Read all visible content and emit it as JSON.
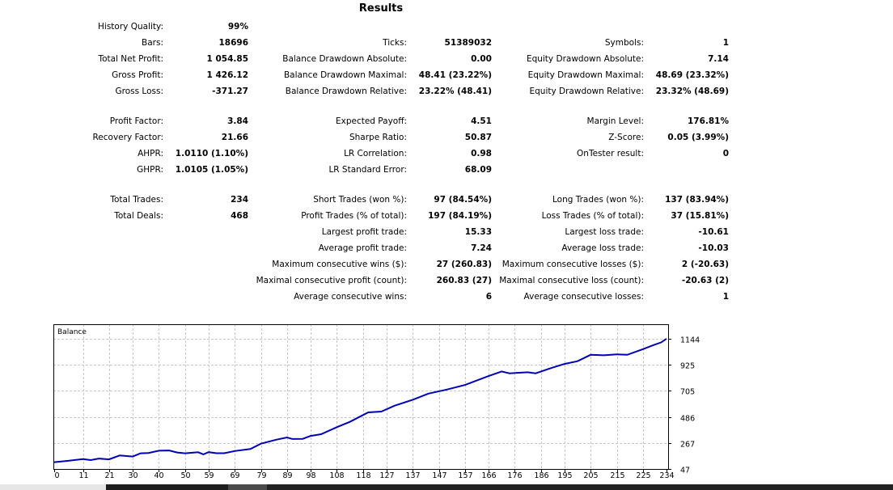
{
  "title": "Results",
  "rows": [
    [
      {
        "label": "History Quality:",
        "value": "99%"
      },
      null,
      null
    ],
    [
      {
        "label": "Bars:",
        "value": "18696"
      },
      {
        "label": "Ticks:",
        "value": "51389032"
      },
      {
        "label": "Symbols:",
        "value": "1"
      }
    ],
    [
      {
        "label": "Total Net Profit:",
        "value": "1 054.85"
      },
      {
        "label": "Balance Drawdown Absolute:",
        "value": "0.00"
      },
      {
        "label": "Equity Drawdown Absolute:",
        "value": "7.14"
      }
    ],
    [
      {
        "label": "Gross Profit:",
        "value": "1 426.12"
      },
      {
        "label": "Balance Drawdown Maximal:",
        "value": "48.41 (23.22%)"
      },
      {
        "label": "Equity Drawdown Maximal:",
        "value": "48.69 (23.32%)"
      }
    ],
    [
      {
        "label": "Gross Loss:",
        "value": "-371.27"
      },
      {
        "label": "Balance Drawdown Relative:",
        "value": "23.22% (48.41)"
      },
      {
        "label": "Equity Drawdown Relative:",
        "value": "23.32% (48.69)"
      }
    ],
    [
      {
        "label": "Profit Factor:",
        "value": "3.84"
      },
      {
        "label": "Expected Payoff:",
        "value": "4.51"
      },
      {
        "label": "Margin Level:",
        "value": "176.81%"
      }
    ],
    [
      {
        "label": "Recovery Factor:",
        "value": "21.66"
      },
      {
        "label": "Sharpe Ratio:",
        "value": "50.87"
      },
      {
        "label": "Z-Score:",
        "value": "0.05 (3.99%)"
      }
    ],
    [
      {
        "label": "AHPR:",
        "value": "1.0110 (1.10%)"
      },
      {
        "label": "LR Correlation:",
        "value": "0.98"
      },
      {
        "label": "OnTester result:",
        "value": "0"
      }
    ],
    [
      {
        "label": "GHPR:",
        "value": "1.0105 (1.05%)"
      },
      {
        "label": "LR Standard Error:",
        "value": "68.09"
      },
      null
    ],
    [
      {
        "label": "Total Trades:",
        "value": "234"
      },
      {
        "label": "Short Trades (won %):",
        "value": "97 (84.54%)"
      },
      {
        "label": "Long Trades (won %):",
        "value": "137 (83.94%)"
      }
    ],
    [
      {
        "label": "Total Deals:",
        "value": "468"
      },
      {
        "label": "Profit Trades (% of total):",
        "value": "197 (84.19%)"
      },
      {
        "label": "Loss Trades (% of total):",
        "value": "37 (15.81%)"
      }
    ],
    [
      null,
      {
        "label": "Largest profit trade:",
        "value": "15.33"
      },
      {
        "label": "Largest loss trade:",
        "value": "-10.61"
      }
    ],
    [
      null,
      {
        "label": "Average profit trade:",
        "value": "7.24"
      },
      {
        "label": "Average loss trade:",
        "value": "-10.03"
      }
    ],
    [
      null,
      {
        "label": "Maximum consecutive wins ($):",
        "value": "27 (260.83)"
      },
      {
        "label": "Maximum consecutive losses ($):",
        "value": "2 (-20.63)"
      }
    ],
    [
      null,
      {
        "label": "Maximal consecutive profit (count):",
        "value": "260.83 (27)"
      },
      {
        "label": "Maximal consecutive loss (count):",
        "value": "-20.63 (2)"
      }
    ],
    [
      null,
      {
        "label": "Average consecutive wins:",
        "value": "6"
      },
      {
        "label": "Average consecutive losses:",
        "value": "1"
      }
    ]
  ],
  "chart_data": {
    "type": "line",
    "title": "Balance",
    "xlabel": "",
    "ylabel": "",
    "xlim": [
      0,
      234
    ],
    "ylim": [
      47,
      1144
    ],
    "x_ticks": [
      0,
      11,
      21,
      30,
      40,
      50,
      59,
      69,
      79,
      89,
      98,
      108,
      118,
      127,
      137,
      147,
      157,
      166,
      176,
      186,
      195,
      205,
      215,
      225,
      234
    ],
    "y_ticks": [
      47,
      267,
      486,
      705,
      925,
      1144
    ],
    "grid": true,
    "line_color": "#0000b4",
    "series": [
      {
        "name": "Balance",
        "x": [
          0,
          5,
          11,
          14,
          17,
          21,
          25,
          30,
          33,
          36,
          40,
          44,
          47,
          50,
          55,
          57,
          59,
          62,
          65,
          69,
          75,
          79,
          85,
          89,
          91,
          95,
          98,
          102,
          108,
          113,
          120,
          125,
          130,
          137,
          143,
          150,
          157,
          166,
          171,
          174,
          181,
          184,
          190,
          195,
          200,
          205,
          210,
          215,
          219,
          225,
          229,
          232,
          234
        ],
        "y": [
          104,
          115,
          131,
          122,
          135,
          128,
          161,
          152,
          179,
          182,
          201,
          203,
          186,
          179,
          188,
          170,
          189,
          180,
          180,
          198,
          215,
          260,
          294,
          313,
          300,
          301,
          326,
          340,
          399,
          444,
          524,
          531,
          580,
          630,
          682,
          716,
          755,
          830,
          869,
          853,
          862,
          853,
          898,
          932,
          955,
          1009,
          1005,
          1013,
          1009,
          1057,
          1091,
          1114,
          1145
        ]
      }
    ]
  }
}
